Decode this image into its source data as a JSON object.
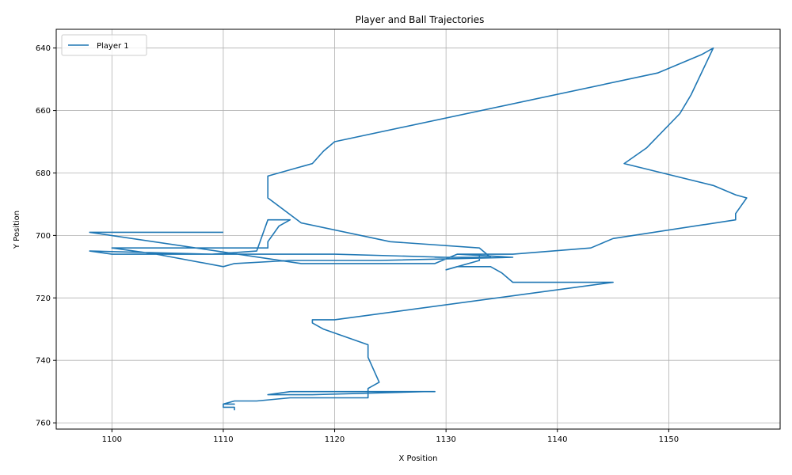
{
  "chart_data": {
    "type": "line",
    "title": "Player and Ball Trajectories",
    "xlabel": "X Position",
    "ylabel": "Y Position",
    "xlim": [
      1095,
      1160
    ],
    "ylim": [
      762,
      634
    ],
    "y_inverted": true,
    "grid": true,
    "legend_position": "top-left",
    "x_ticks": [
      1100,
      1110,
      1120,
      1130,
      1140,
      1150
    ],
    "y_ticks": [
      640,
      660,
      680,
      700,
      720,
      740,
      760
    ],
    "series": [
      {
        "name": "Player 1",
        "color": "#1f77b4",
        "x": [
          1111,
          1111,
          1110,
          1110,
          1111,
          1110,
          1111,
          1113,
          1116,
          1123,
          1123,
          1116,
          1114,
          1118,
          1128,
          1129,
          1128,
          1123,
          1123,
          1124,
          1123,
          1123,
          1119,
          1118,
          1118,
          1120,
          1145,
          1136,
          1135,
          1134,
          1134,
          1131,
          1130,
          1133,
          1133,
          1131,
          1136,
          1124,
          1120,
          1116,
          1111,
          1110,
          1104,
          1100,
          1114,
          1114,
          1115,
          1116,
          1114,
          1113,
          1109,
          1098,
          1100,
          1120,
          1130,
          1129,
          1134,
          1133,
          1125,
          1117,
          1114,
          1114,
          1118,
          1119,
          1120,
          1149,
          1153,
          1154,
          1152,
          1151,
          1148,
          1146,
          1154,
          1156,
          1157,
          1156,
          1156,
          1145,
          1143,
          1136,
          1131,
          1129,
          1120,
          1117,
          1098,
          1100,
          1110,
          1110
        ],
        "y": [
          756,
          755,
          755,
          754,
          754,
          754,
          753,
          753,
          752,
          752,
          750,
          750,
          751,
          751,
          750,
          750,
          750,
          750,
          749,
          747,
          739,
          735,
          730,
          728,
          727,
          727,
          715,
          715,
          712,
          710,
          710,
          710,
          711,
          708,
          706,
          706,
          707,
          708,
          708,
          708,
          709,
          710,
          706,
          704,
          704,
          702,
          697,
          695,
          695,
          705,
          706,
          705,
          706,
          706,
          707,
          707,
          707,
          704,
          702,
          696,
          688,
          681,
          677,
          673,
          670,
          648,
          642,
          640,
          655,
          661,
          672,
          677,
          684,
          687,
          688,
          693,
          695,
          701,
          704,
          706,
          706,
          709,
          709,
          709,
          699,
          699,
          699,
          699
        ]
      }
    ]
  }
}
